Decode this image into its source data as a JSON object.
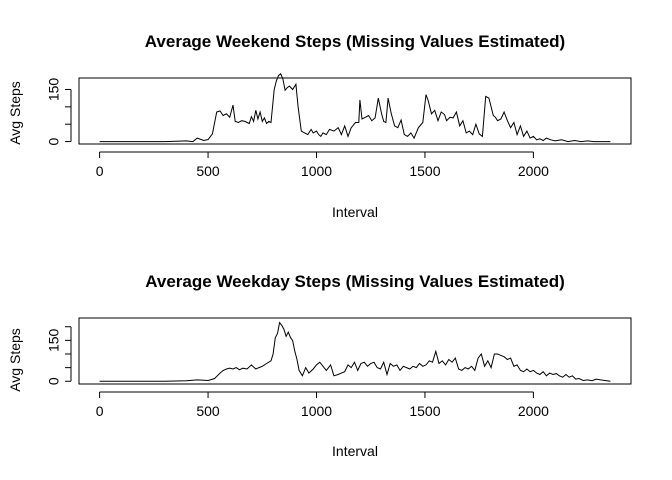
{
  "chart_data": [
    {
      "type": "line",
      "title": "Average Weekend Steps (Missing Values Estimated)",
      "xlabel": "Interval",
      "ylabel": "Avg Steps",
      "xlim": [
        -95,
        2450
      ],
      "ylim": [
        -7,
        183
      ],
      "xticks": [
        0,
        500,
        1000,
        1500,
        2000
      ],
      "yticks": [
        0,
        50,
        100,
        150
      ],
      "ytick_labels": [
        "0",
        "",
        "",
        "150"
      ],
      "grid": false,
      "legend": "none",
      "color": "#000000",
      "x": [
        0,
        100,
        200,
        300,
        400,
        430,
        450,
        480,
        500,
        520,
        540,
        555,
        570,
        585,
        600,
        615,
        625,
        640,
        655,
        670,
        690,
        700,
        710,
        720,
        730,
        740,
        750,
        760,
        770,
        780,
        790,
        805,
        815,
        825,
        835,
        845,
        855,
        865,
        875,
        890,
        905,
        915,
        930,
        945,
        960,
        975,
        985,
        1000,
        1010,
        1020,
        1030,
        1045,
        1060,
        1080,
        1100,
        1115,
        1130,
        1145,
        1160,
        1180,
        1195,
        1200,
        1210,
        1225,
        1240,
        1255,
        1270,
        1285,
        1300,
        1310,
        1320,
        1330,
        1345,
        1360,
        1375,
        1390,
        1405,
        1420,
        1435,
        1450,
        1470,
        1490,
        1505,
        1515,
        1530,
        1545,
        1560,
        1575,
        1590,
        1600,
        1615,
        1630,
        1645,
        1660,
        1675,
        1690,
        1705,
        1720,
        1735,
        1750,
        1765,
        1780,
        1795,
        1805,
        1815,
        1825,
        1835,
        1850,
        1865,
        1880,
        1895,
        1910,
        1925,
        1940,
        1955,
        1970,
        1985,
        2000,
        2015,
        2030,
        2045,
        2060,
        2080,
        2100,
        2130,
        2160,
        2190,
        2220,
        2250,
        2280,
        2310,
        2340,
        2355
      ],
      "y": [
        0,
        0,
        0,
        0,
        2,
        0,
        10,
        3,
        6,
        22,
        85,
        88,
        75,
        80,
        70,
        105,
        58,
        55,
        60,
        58,
        52,
        72,
        58,
        90,
        65,
        85,
        58,
        68,
        52,
        58,
        55,
        150,
        175,
        190,
        195,
        180,
        148,
        155,
        160,
        150,
        165,
        100,
        30,
        25,
        20,
        35,
        25,
        30,
        20,
        15,
        25,
        20,
        35,
        30,
        40,
        20,
        45,
        15,
        40,
        55,
        55,
        120,
        65,
        70,
        75,
        60,
        68,
        125,
        80,
        58,
        55,
        125,
        80,
        45,
        40,
        62,
        20,
        15,
        25,
        10,
        40,
        55,
        135,
        118,
        80,
        90,
        60,
        85,
        78,
        60,
        70,
        68,
        85,
        45,
        60,
        25,
        30,
        20,
        50,
        22,
        15,
        130,
        125,
        100,
        75,
        70,
        60,
        65,
        85,
        60,
        40,
        55,
        20,
        45,
        15,
        30,
        10,
        15,
        5,
        8,
        3,
        10,
        5,
        2,
        5,
        0,
        3,
        0,
        2,
        0,
        0,
        0,
        0
      ]
    },
    {
      "type": "line",
      "title": "Average Weekday Steps (Missing Values Estimated)",
      "xlabel": "Interval",
      "ylabel": "Avg Steps",
      "xlim": [
        -95,
        2450
      ],
      "ylim": [
        -10,
        232
      ],
      "xticks": [
        0,
        500,
        1000,
        1500,
        2000
      ],
      "yticks": [
        0,
        50,
        100,
        150,
        200
      ],
      "ytick_labels": [
        "0",
        "",
        "",
        "150",
        ""
      ],
      "grid": false,
      "legend": "none",
      "color": "#000000",
      "x": [
        0,
        100,
        200,
        300,
        400,
        450,
        500,
        510,
        530,
        545,
        555,
        570,
        585,
        600,
        615,
        630,
        645,
        660,
        680,
        700,
        720,
        735,
        750,
        770,
        790,
        800,
        810,
        820,
        830,
        840,
        850,
        860,
        870,
        880,
        890,
        900,
        910,
        920,
        935,
        950,
        965,
        985,
        1000,
        1015,
        1030,
        1045,
        1065,
        1080,
        1100,
        1115,
        1130,
        1145,
        1160,
        1175,
        1190,
        1205,
        1220,
        1235,
        1250,
        1265,
        1280,
        1295,
        1310,
        1325,
        1340,
        1355,
        1370,
        1385,
        1400,
        1415,
        1430,
        1445,
        1460,
        1475,
        1490,
        1505,
        1520,
        1535,
        1550,
        1565,
        1580,
        1595,
        1610,
        1625,
        1640,
        1655,
        1670,
        1685,
        1700,
        1715,
        1730,
        1745,
        1760,
        1775,
        1790,
        1805,
        1820,
        1835,
        1850,
        1865,
        1880,
        1895,
        1910,
        1925,
        1940,
        1955,
        1970,
        1985,
        2000,
        2015,
        2030,
        2045,
        2060,
        2075,
        2090,
        2105,
        2120,
        2135,
        2150,
        2165,
        2180,
        2195,
        2210,
        2230,
        2250,
        2270,
        2290,
        2310,
        2330,
        2355
      ],
      "y": [
        0,
        0,
        0,
        0,
        2,
        5,
        3,
        5,
        10,
        22,
        30,
        40,
        45,
        48,
        45,
        50,
        42,
        48,
        45,
        60,
        45,
        50,
        55,
        65,
        75,
        100,
        160,
        175,
        215,
        205,
        190,
        165,
        180,
        160,
        150,
        110,
        80,
        40,
        20,
        50,
        30,
        45,
        60,
        70,
        55,
        40,
        60,
        20,
        25,
        30,
        35,
        60,
        50,
        70,
        40,
        65,
        70,
        55,
        65,
        70,
        50,
        45,
        70,
        25,
        65,
        55,
        60,
        40,
        55,
        50,
        45,
        55,
        50,
        65,
        55,
        60,
        75,
        70,
        110,
        65,
        75,
        60,
        80,
        70,
        85,
        45,
        40,
        50,
        45,
        55,
        40,
        85,
        100,
        55,
        75,
        50,
        100,
        100,
        95,
        90,
        80,
        85,
        55,
        60,
        40,
        35,
        45,
        35,
        40,
        30,
        25,
        35,
        20,
        30,
        25,
        28,
        20,
        15,
        25,
        15,
        20,
        8,
        10,
        3,
        5,
        2,
        8,
        5,
        3,
        0
      ]
    }
  ]
}
